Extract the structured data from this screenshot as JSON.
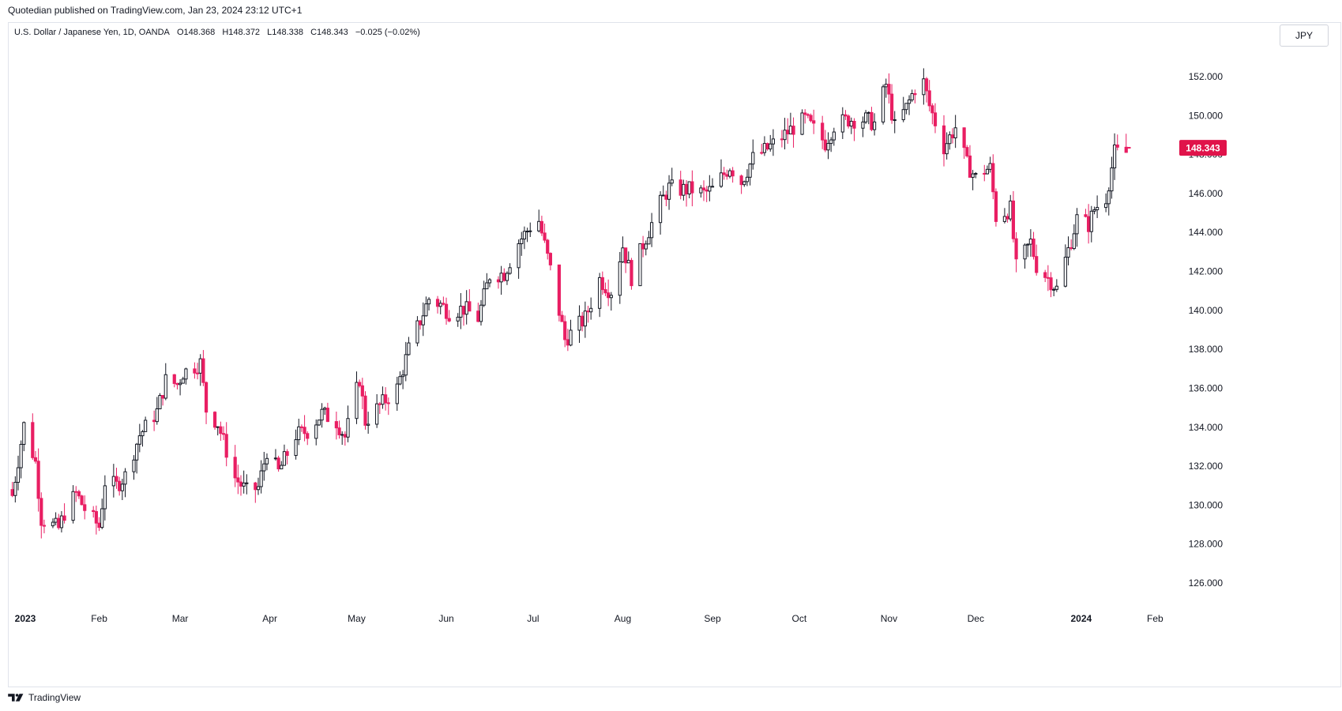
{
  "header": {
    "publisher_line": "Quotedian published on TradingView.com, Jan 23, 2024 23:12 UTC+1"
  },
  "legend": {
    "symbol": "U.S. Dollar / Japanese Yen, 1D, OANDA",
    "open": "O148.368",
    "high": "H148.372",
    "low": "L148.338",
    "close": "C148.343",
    "change": "−0.025 (−0.02%)"
  },
  "unit_button": "JPY",
  "last_price_label": "148.343",
  "brand": "TradingView",
  "colors": {
    "up": "#131722",
    "down": "#e91e63",
    "last_price_bg": "#e0134a",
    "grid": "#ffffff"
  },
  "chart_data": {
    "type": "candlestick",
    "x_axis": {
      "labels": [
        "2023",
        "Feb",
        "Mar",
        "Apr",
        "May",
        "Jun",
        "Jul",
        "Aug",
        "Sep",
        "Oct",
        "Nov",
        "Dec",
        "2024",
        "Feb"
      ],
      "bold_labels": [
        "2023",
        "2024"
      ],
      "label_dates": [
        "2023-01-01",
        "2023-02-01",
        "2023-03-01",
        "2023-04-01",
        "2023-05-01",
        "2023-06-01",
        "2023-07-01",
        "2023-08-01",
        "2023-09-01",
        "2023-10-01",
        "2023-11-01",
        "2023-12-01",
        "2024-01-01",
        "2024-02-01"
      ],
      "range": [
        "2023-01-01",
        "2024-02-08"
      ]
    },
    "y_axis": {
      "ticks": [
        "126.000",
        "128.000",
        "130.000",
        "132.000",
        "134.000",
        "136.000",
        "138.000",
        "140.000",
        "142.000",
        "144.000",
        "146.000",
        "148.000",
        "150.000",
        "152.000"
      ],
      "range": [
        124.5,
        153.5
      ],
      "position": "right"
    },
    "last_price": 148.343,
    "anchors": [
      {
        "date": "2023-01-02",
        "close": 130.5
      },
      {
        "date": "2023-01-06",
        "close": 134.1
      },
      {
        "date": "2023-01-10",
        "close": 132.2
      },
      {
        "date": "2023-01-12",
        "close": 129.3
      },
      {
        "date": "2023-01-18",
        "close": 128.8
      },
      {
        "date": "2023-01-20",
        "close": 129.6
      },
      {
        "date": "2023-01-24",
        "close": 130.6
      },
      {
        "date": "2023-01-27",
        "close": 129.8
      },
      {
        "date": "2023-02-01",
        "close": 128.9
      },
      {
        "date": "2023-02-03",
        "close": 131.2
      },
      {
        "date": "2023-02-07",
        "close": 131.0
      },
      {
        "date": "2023-02-10",
        "close": 131.5
      },
      {
        "date": "2023-02-15",
        "close": 133.6
      },
      {
        "date": "2023-02-21",
        "close": 134.8
      },
      {
        "date": "2023-02-24",
        "close": 136.4
      },
      {
        "date": "2023-02-28",
        "close": 136.2
      },
      {
        "date": "2023-03-02",
        "close": 136.8
      },
      {
        "date": "2023-03-08",
        "close": 137.3
      },
      {
        "date": "2023-03-10",
        "close": 134.9
      },
      {
        "date": "2023-03-14",
        "close": 134.2
      },
      {
        "date": "2023-03-20",
        "close": 131.4
      },
      {
        "date": "2023-03-24",
        "close": 130.7
      },
      {
        "date": "2023-03-28",
        "close": 130.9
      },
      {
        "date": "2023-03-31",
        "close": 132.8
      },
      {
        "date": "2023-04-04",
        "close": 131.7
      },
      {
        "date": "2023-04-10",
        "close": 133.6
      },
      {
        "date": "2023-04-14",
        "close": 133.8
      },
      {
        "date": "2023-04-19",
        "close": 134.7
      },
      {
        "date": "2023-04-24",
        "close": 134.3
      },
      {
        "date": "2023-04-27",
        "close": 133.5
      },
      {
        "date": "2023-05-02",
        "close": 136.5
      },
      {
        "date": "2023-05-04",
        "close": 134.3
      },
      {
        "date": "2023-05-09",
        "close": 135.1
      },
      {
        "date": "2023-05-15",
        "close": 136.0
      },
      {
        "date": "2023-05-19",
        "close": 138.0
      },
      {
        "date": "2023-05-26",
        "close": 140.6
      },
      {
        "date": "2023-05-30",
        "close": 140.3
      },
      {
        "date": "2023-06-02",
        "close": 139.9
      },
      {
        "date": "2023-06-07",
        "close": 140.1
      },
      {
        "date": "2023-06-12",
        "close": 139.6
      },
      {
        "date": "2023-06-16",
        "close": 141.8
      },
      {
        "date": "2023-06-21",
        "close": 141.9
      },
      {
        "date": "2023-06-26",
        "close": 143.5
      },
      {
        "date": "2023-06-30",
        "close": 144.3
      },
      {
        "date": "2023-07-03",
        "close": 144.6
      },
      {
        "date": "2023-07-07",
        "close": 142.1
      },
      {
        "date": "2023-07-12",
        "close": 138.5
      },
      {
        "date": "2023-07-14",
        "close": 138.8
      },
      {
        "date": "2023-07-19",
        "close": 139.6
      },
      {
        "date": "2023-07-24",
        "close": 141.6
      },
      {
        "date": "2023-07-27",
        "close": 141.1
      },
      {
        "date": "2023-07-28",
        "close": 141.0
      },
      {
        "date": "2023-08-01",
        "close": 143.3
      },
      {
        "date": "2023-08-04",
        "close": 141.7
      },
      {
        "date": "2023-08-08",
        "close": 143.4
      },
      {
        "date": "2023-08-14",
        "close": 145.5
      },
      {
        "date": "2023-08-17",
        "close": 146.3
      },
      {
        "date": "2023-08-21",
        "close": 146.2
      },
      {
        "date": "2023-08-25",
        "close": 146.2
      },
      {
        "date": "2023-08-29",
        "close": 146.0
      },
      {
        "date": "2023-09-01",
        "close": 146.2
      },
      {
        "date": "2023-09-07",
        "close": 147.4
      },
      {
        "date": "2023-09-11",
        "close": 146.6
      },
      {
        "date": "2023-09-15",
        "close": 147.8
      },
      {
        "date": "2023-09-20",
        "close": 148.3
      },
      {
        "date": "2023-09-25",
        "close": 148.9
      },
      {
        "date": "2023-09-29",
        "close": 149.4
      },
      {
        "date": "2023-10-03",
        "close": 149.8
      },
      {
        "date": "2023-10-06",
        "close": 149.3
      },
      {
        "date": "2023-10-10",
        "close": 148.6
      },
      {
        "date": "2023-10-13",
        "close": 149.5
      },
      {
        "date": "2023-10-18",
        "close": 149.8
      },
      {
        "date": "2023-10-24",
        "close": 149.8
      },
      {
        "date": "2023-10-27",
        "close": 149.6
      },
      {
        "date": "2023-10-31",
        "close": 151.6
      },
      {
        "date": "2023-11-03",
        "close": 149.4
      },
      {
        "date": "2023-11-07",
        "close": 150.4
      },
      {
        "date": "2023-11-10",
        "close": 151.4
      },
      {
        "date": "2023-11-13",
        "close": 151.7
      },
      {
        "date": "2023-11-15",
        "close": 150.5
      },
      {
        "date": "2023-11-20",
        "close": 148.4
      },
      {
        "date": "2023-11-24",
        "close": 149.4
      },
      {
        "date": "2023-11-28",
        "close": 147.5
      },
      {
        "date": "2023-12-01",
        "close": 146.8
      },
      {
        "date": "2023-12-04",
        "close": 147.2
      },
      {
        "date": "2023-12-06",
        "close": 147.3
      },
      {
        "date": "2023-12-08",
        "close": 144.8
      },
      {
        "date": "2023-12-13",
        "close": 145.2
      },
      {
        "date": "2023-12-15",
        "close": 142.2
      },
      {
        "date": "2023-12-20",
        "close": 143.5
      },
      {
        "date": "2023-12-22",
        "close": 142.3
      },
      {
        "date": "2023-12-27",
        "close": 141.5
      },
      {
        "date": "2023-12-29",
        "close": 141.1
      },
      {
        "date": "2024-01-03",
        "close": 143.6
      },
      {
        "date": "2024-01-05",
        "close": 144.7
      },
      {
        "date": "2024-01-09",
        "close": 144.4
      },
      {
        "date": "2024-01-11",
        "close": 145.2
      },
      {
        "date": "2024-01-15",
        "close": 145.8
      },
      {
        "date": "2024-01-18",
        "close": 148.1
      },
      {
        "date": "2024-01-22",
        "close": 148.1
      },
      {
        "date": "2024-01-23",
        "close": 148.343
      }
    ],
    "start_open": 130.8,
    "grid": false,
    "legend_position": "top-left"
  }
}
